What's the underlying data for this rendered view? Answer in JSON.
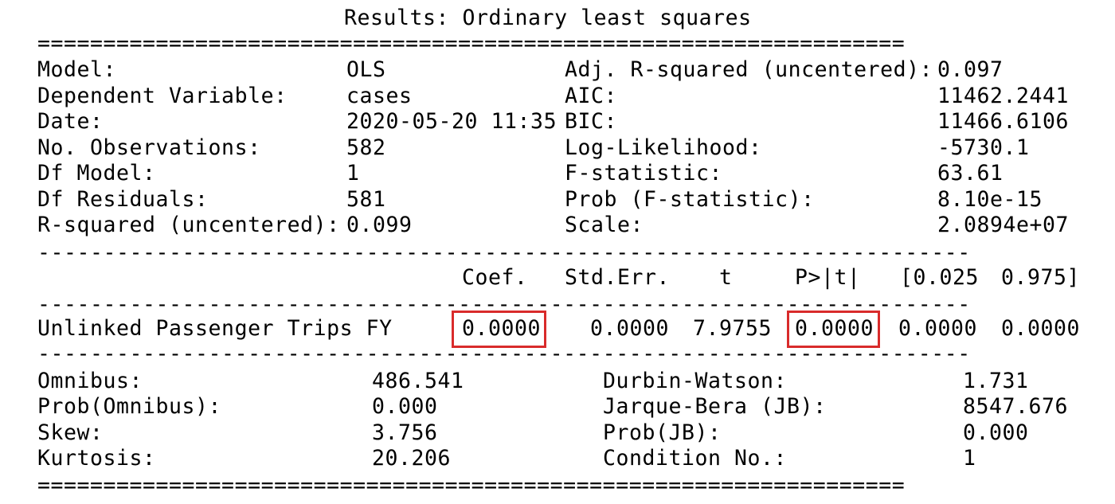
{
  "title": "Results: Ordinary least squares",
  "rules": {
    "double": "==================================================================",
    "single": "-----------------------------------------------------------------------"
  },
  "top_left": [
    {
      "label": "Model:",
      "value": "OLS"
    },
    {
      "label": "Dependent Variable:",
      "value": "cases"
    },
    {
      "label": "Date:",
      "value": "2020-05-20 11:35"
    },
    {
      "label": "No. Observations:",
      "value": "582"
    },
    {
      "label": "Df Model:",
      "value": "1"
    },
    {
      "label": "Df Residuals:",
      "value": "581"
    },
    {
      "label": "R-squared (uncentered):",
      "value": "0.099"
    }
  ],
  "top_right": [
    {
      "label": "Adj. R-squared (uncentered):",
      "value": "0.097"
    },
    {
      "label": "AIC:",
      "value": "11462.2441"
    },
    {
      "label": "BIC:",
      "value": "11466.6106"
    },
    {
      "label": "Log-Likelihood:",
      "value": "-5730.1"
    },
    {
      "label": "F-statistic:",
      "value": "63.61"
    },
    {
      "label": "Prob (F-statistic):",
      "value": "8.10e-15"
    },
    {
      "label": "Scale:",
      "value": "2.0894e+07"
    }
  ],
  "coef_headers": [
    "Coef.",
    "Std.Err.",
    "t",
    "P>|t|",
    "[0.025",
    "0.975]"
  ],
  "coef_row": {
    "name": "Unlinked Passenger Trips FY",
    "values": [
      "0.0000",
      "0.0000",
      "7.9755",
      "0.0000",
      "0.0000",
      "0.0000"
    ]
  },
  "bottom_left": [
    {
      "label": "Omnibus:",
      "value": "486.541"
    },
    {
      "label": "Prob(Omnibus):",
      "value": "0.000"
    },
    {
      "label": "Skew:",
      "value": "3.756"
    },
    {
      "label": "Kurtosis:",
      "value": "20.206"
    }
  ],
  "bottom_right": [
    {
      "label": "Durbin-Watson:",
      "value": "1.731"
    },
    {
      "label": "Jarque-Bera (JB):",
      "value": "8547.676"
    },
    {
      "label": "Prob(JB):",
      "value": "0.000"
    },
    {
      "label": "Condition No.:",
      "value": "1"
    }
  ],
  "highlight_color": "#d92b2b"
}
